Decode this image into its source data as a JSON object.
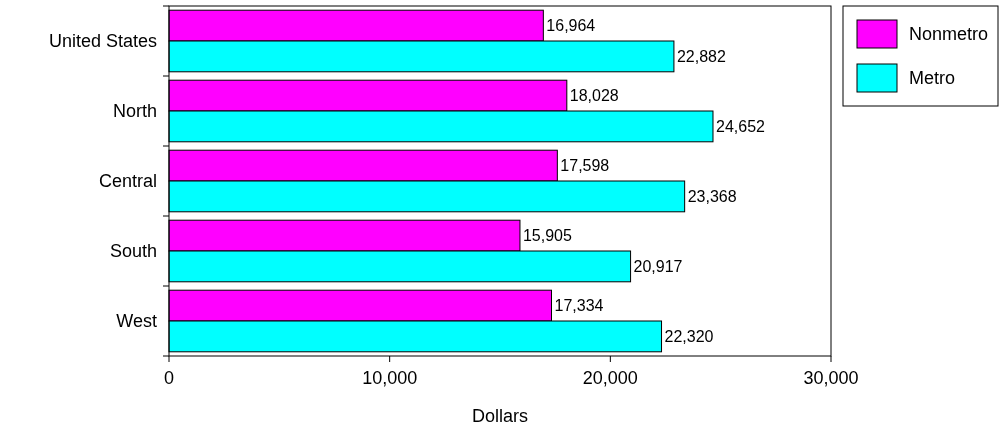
{
  "chart_data": {
    "type": "bar",
    "orientation": "horizontal",
    "xlabel": "Dollars",
    "categories": [
      "United States",
      "North",
      "Central",
      "South",
      "West"
    ],
    "series": [
      {
        "name": "Nonmetro",
        "color": "#ff00ff",
        "values": [
          16964,
          18028,
          17598,
          15905,
          17334
        ],
        "value_labels": [
          "16,964",
          "18,028",
          "17,598",
          "15,905",
          "17,334"
        ]
      },
      {
        "name": "Metro",
        "color": "#00ffff",
        "values": [
          22882,
          24652,
          23368,
          20917,
          22320
        ],
        "value_labels": [
          "22,882",
          "24,652",
          "23,368",
          "20,917",
          "22,320"
        ]
      }
    ],
    "xlim": [
      0,
      30000
    ],
    "xticks": [
      0,
      {
        "value": 10000,
        "label": "10,000"
      },
      {
        "value": 20000,
        "label": "20,000"
      },
      {
        "value": 30000,
        "label": "30,000"
      }
    ],
    "legend": "right",
    "grid": false
  }
}
